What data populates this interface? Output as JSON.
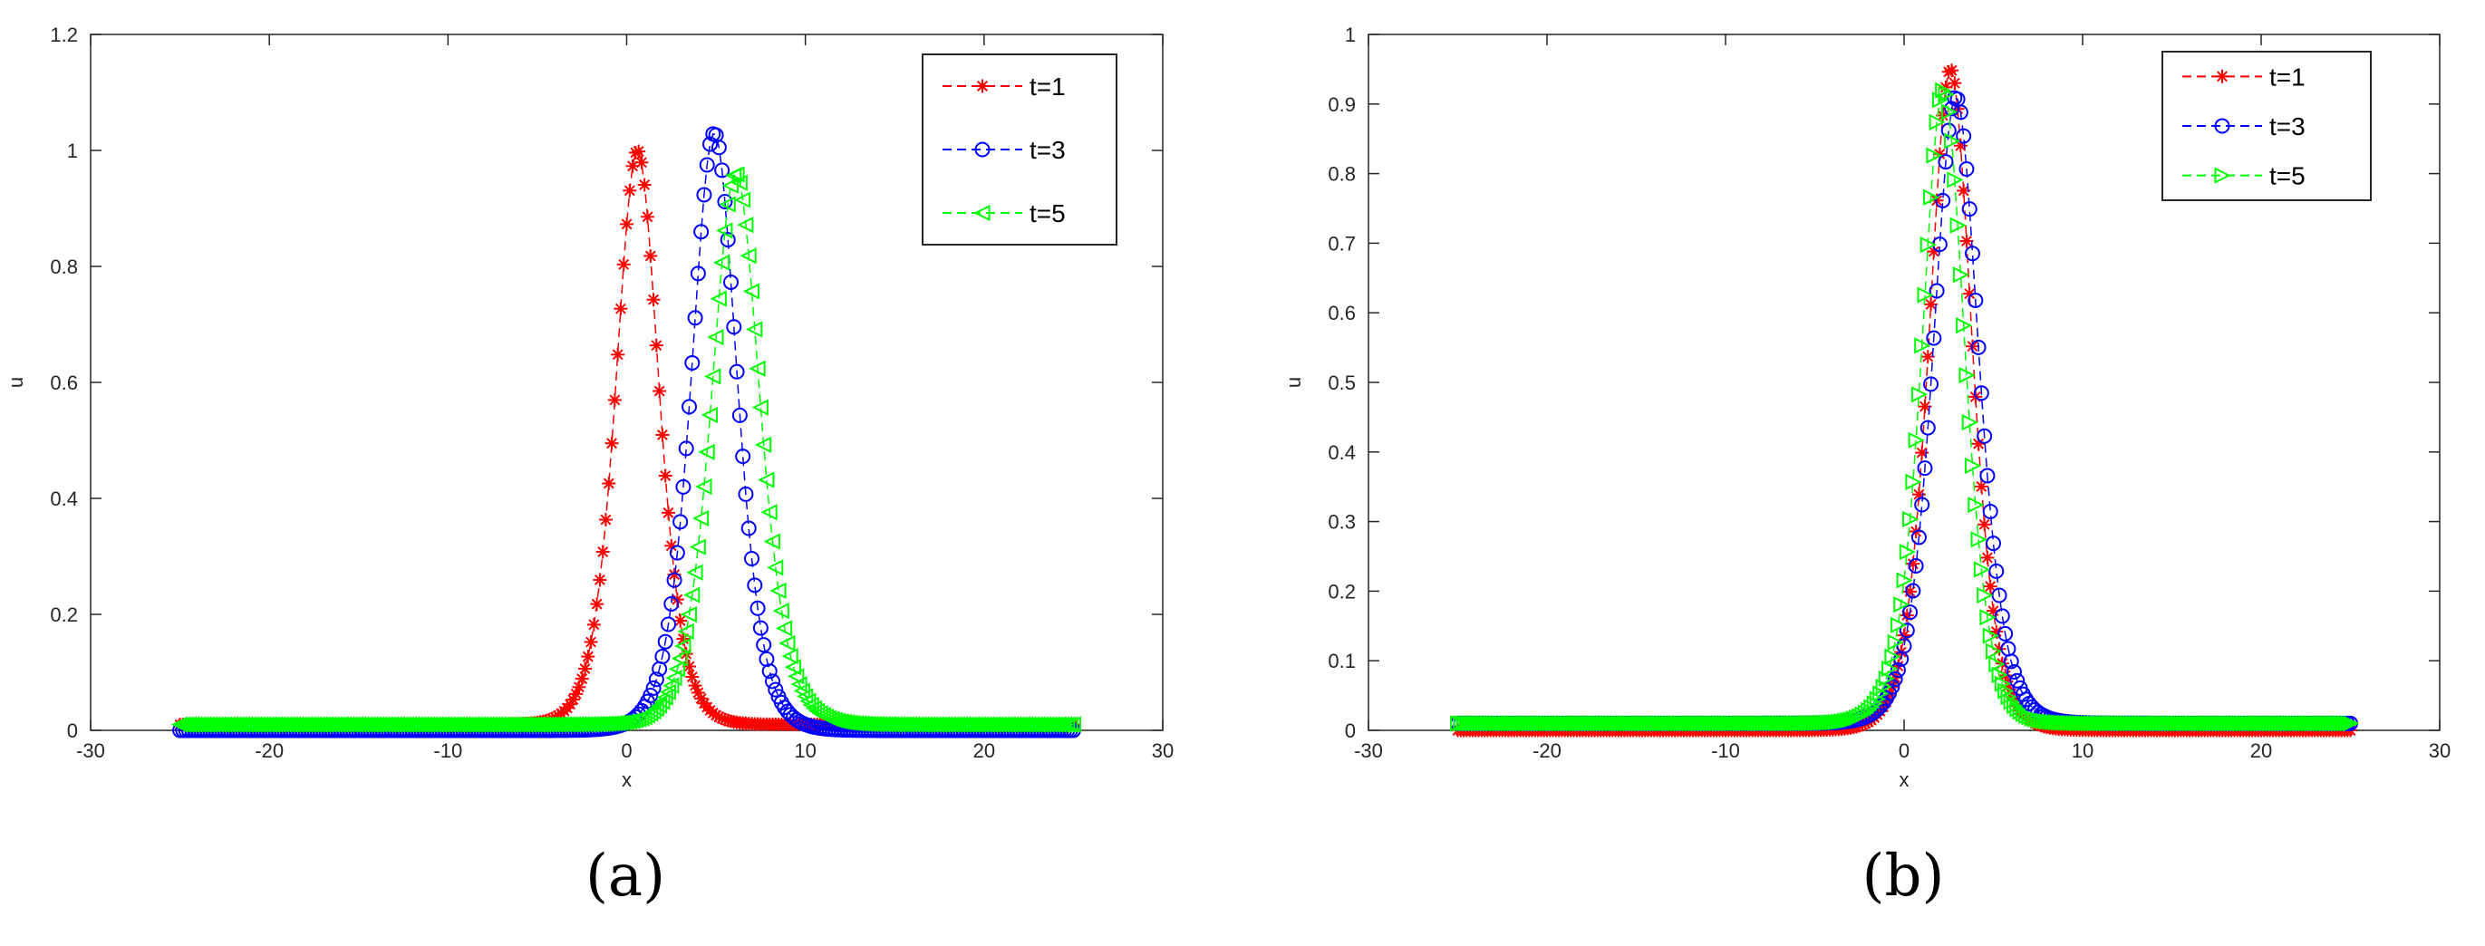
{
  "panel_labels": [
    "(a)",
    "(b)"
  ],
  "chart_data": [
    {
      "type": "line",
      "xlabel": "x",
      "ylabel": "u",
      "xlim": [
        -30,
        30
      ],
      "ylim": [
        0,
        1.2
      ],
      "xticks": [
        -30,
        -20,
        -10,
        0,
        10,
        20,
        30
      ],
      "yticks": [
        0,
        0.2,
        0.4,
        0.6,
        0.8,
        1,
        1.2
      ],
      "xtick_labels": [
        "-30",
        "-20",
        "-10",
        "0",
        "10",
        "20",
        "30"
      ],
      "ytick_labels": [
        "0",
        "0.2",
        "0.4",
        "0.6",
        "0.8",
        "1",
        "1.2"
      ],
      "grid": false,
      "legend_position": "top-right",
      "x_domain": [
        -25,
        25
      ],
      "series": [
        {
          "name": "t=1",
          "color": "#ff0000",
          "marker": "asterisk",
          "peak_x": 0.6,
          "peak_u": 1.0,
          "width": 1.6,
          "baseline": 0.01,
          "tail": 0.0
        },
        {
          "name": "t=3",
          "color": "#0000ff",
          "marker": "circle",
          "peak_x": 4.9,
          "peak_u": 1.03,
          "width": 1.7,
          "baseline": 0.0,
          "tail": 0.0
        },
        {
          "name": "t=5",
          "color": "#00ff00",
          "marker": "triangle-left",
          "peak_x": 6.1,
          "peak_u": 0.96,
          "width": 1.8,
          "baseline": 0.01,
          "tail": 0.0
        }
      ]
    },
    {
      "type": "line",
      "xlabel": "x",
      "ylabel": "u",
      "xlim": [
        -30,
        30
      ],
      "ylim": [
        0,
        1
      ],
      "xticks": [
        -30,
        -20,
        -10,
        0,
        10,
        20,
        30
      ],
      "yticks": [
        0,
        0.1,
        0.2,
        0.3,
        0.4,
        0.5,
        0.6,
        0.7,
        0.8,
        0.9,
        1
      ],
      "xtick_labels": [
        "-30",
        "-20",
        "-10",
        "0",
        "10",
        "20",
        "30"
      ],
      "ytick_labels": [
        "0",
        "0.1",
        "0.2",
        "0.3",
        "0.4",
        "0.5",
        "0.6",
        "0.7",
        "0.8",
        "0.9",
        "1"
      ],
      "grid": false,
      "legend_position": "top-right",
      "x_domain": [
        -25,
        25
      ],
      "series": [
        {
          "name": "t=1",
          "color": "#ff0000",
          "marker": "asterisk",
          "peak_x": 2.6,
          "peak_u": 0.95,
          "width": 1.6,
          "baseline": 0.0,
          "tail": 0.0
        },
        {
          "name": "t=3",
          "color": "#0000ff",
          "marker": "circle",
          "peak_x": 2.9,
          "peak_u": 0.91,
          "width": 1.7,
          "baseline": 0.01,
          "tail": 0.0
        },
        {
          "name": "t=5",
          "color": "#00ff00",
          "marker": "triangle-right",
          "peak_x": 2.2,
          "peak_u": 0.92,
          "width": 1.6,
          "baseline": 0.01,
          "tail": 0.0
        }
      ]
    }
  ]
}
